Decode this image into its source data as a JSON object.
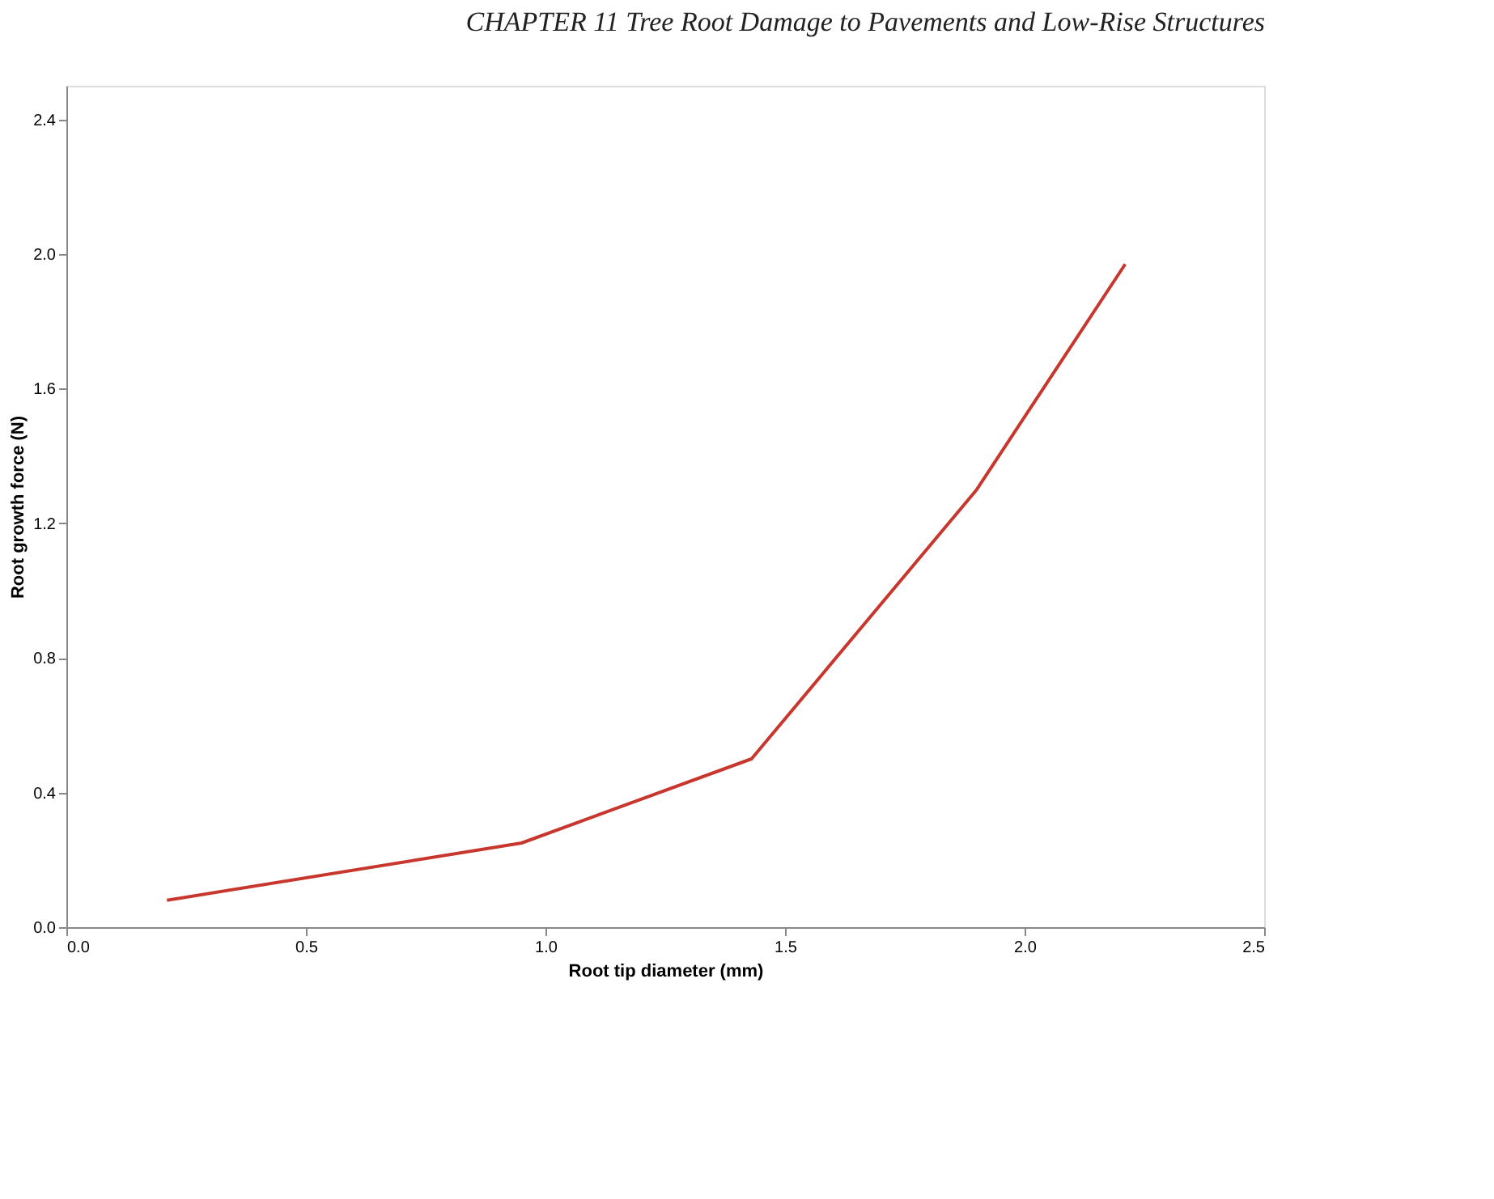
{
  "chart_data": {
    "type": "line",
    "annotations": [
      "CHAPTER 11  Tree Root Damage to Pavements and Low-Rise Structures"
    ],
    "xlabel": "Root tip diameter (mm)",
    "ylabel": "Root growth force (N)",
    "x": [
      0.21,
      0.95,
      1.43,
      1.9,
      2.21
    ],
    "series": [
      {
        "color": "#c8372d",
        "values": [
          0.08,
          0.25,
          0.5,
          1.3,
          1.97
        ]
      }
    ],
    "xlim": [
      0,
      2.5
    ],
    "xticks": [
      {
        "value": 0,
        "label": "0.0"
      },
      0.5,
      {
        "value": 1,
        "label": "1.0"
      },
      1.5,
      {
        "value": 2,
        "label": "2.0"
      },
      2.5
    ],
    "ylim": [
      0,
      2.5
    ],
    "yticks": [
      {
        "value": 0,
        "label": "0.0"
      },
      0.4,
      0.8,
      1.2,
      1.6,
      {
        "value": 2,
        "label": "2.0"
      },
      2.4
    ],
    "grid": false,
    "marker": "none",
    "line_style": "solid"
  }
}
